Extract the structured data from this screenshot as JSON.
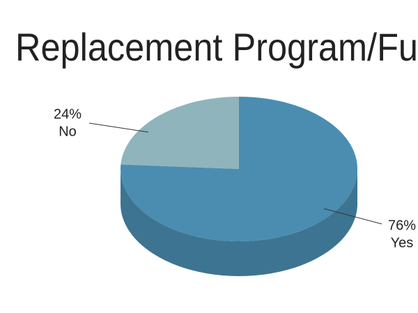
{
  "chart_data": {
    "type": "pie",
    "title": "Replacement Program/Fu",
    "categories": [
      "No",
      "Yes"
    ],
    "values": [
      24,
      76
    ],
    "value_labels": [
      "24%",
      "76%"
    ],
    "colors": [
      "#8fb4bc",
      "#4a8db1"
    ]
  }
}
